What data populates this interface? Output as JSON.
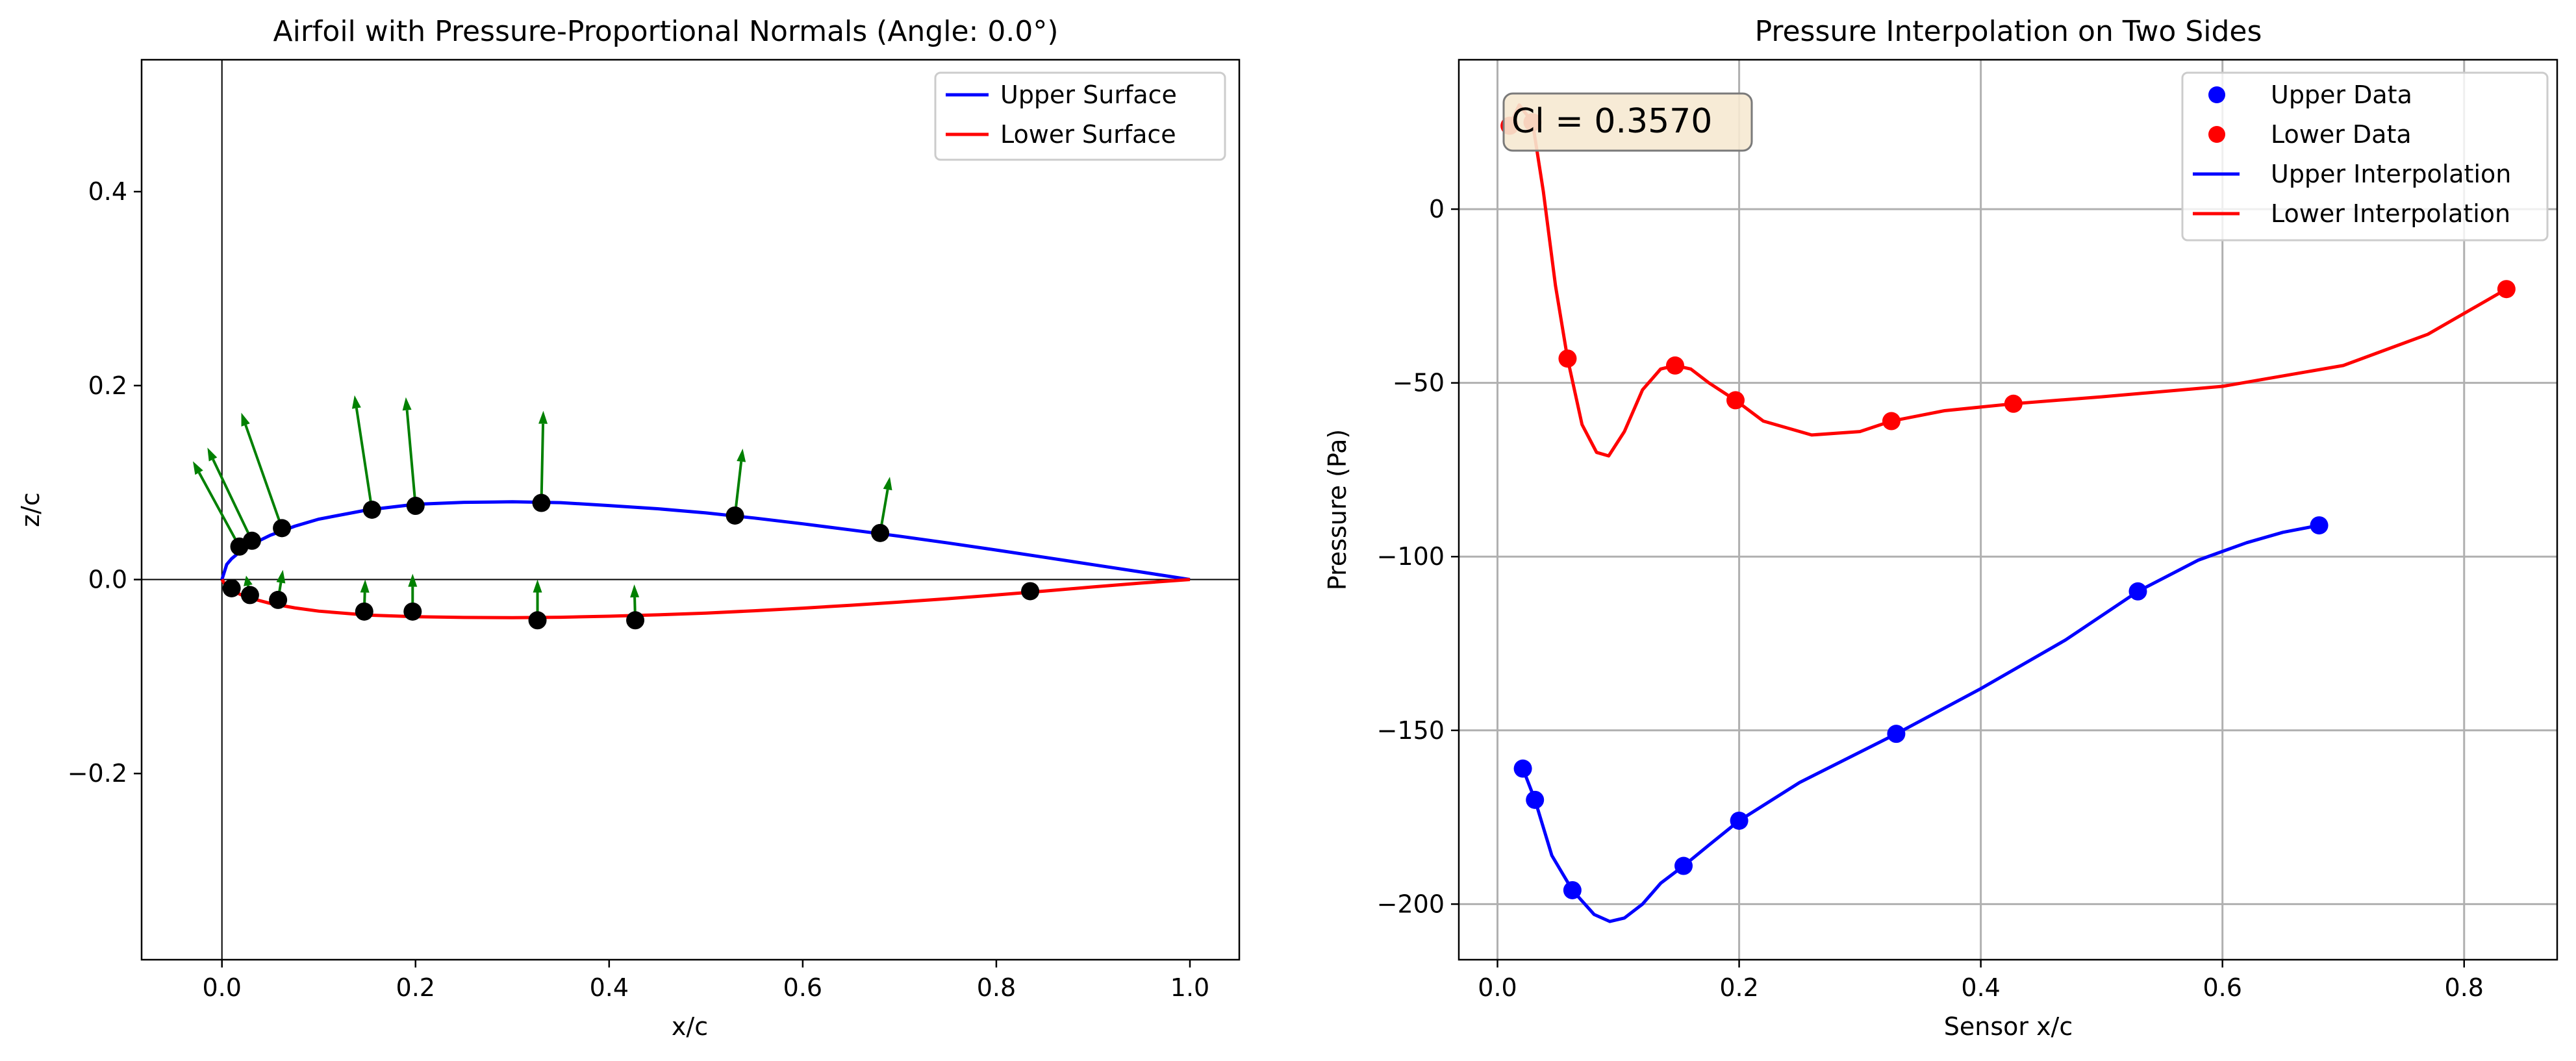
{
  "chart_data": [
    {
      "type": "line",
      "title": "Airfoil with Pressure-Proportional Normals (Angle: 0.0°)",
      "xlabel": "x/c",
      "ylabel": "z/c",
      "xlim": [
        -0.083,
        1.051
      ],
      "ylim": [
        -0.392,
        0.536
      ],
      "xticks": [
        0.0,
        0.2,
        0.4,
        0.6,
        0.8,
        1.0
      ],
      "yticks": [
        -0.2,
        0.0,
        0.2,
        0.4
      ],
      "grid": false,
      "legend_position": "top-right",
      "reference_lines": {
        "x": 0,
        "y": 0
      },
      "series": [
        {
          "name": "Upper Surface",
          "color": "#0000ff",
          "x": [
            0,
            0.005,
            0.01,
            0.02,
            0.03,
            0.05,
            0.075,
            0.1,
            0.15,
            0.2,
            0.25,
            0.3,
            0.35,
            0.4,
            0.45,
            0.5,
            0.55,
            0.6,
            0.65,
            0.7,
            0.75,
            0.8,
            0.85,
            0.9,
            0.95,
            1.0
          ],
          "y": [
            0,
            0.0156,
            0.0215,
            0.0298,
            0.0359,
            0.0457,
            0.0549,
            0.0623,
            0.0717,
            0.0776,
            0.0796,
            0.0802,
            0.0793,
            0.0763,
            0.073,
            0.0687,
            0.0634,
            0.0575,
            0.0511,
            0.0447,
            0.0377,
            0.0304,
            0.0229,
            0.0153,
            0.0077,
            0
          ]
        },
        {
          "name": "Lower Surface",
          "color": "#ff0000",
          "x": [
            0,
            0.005,
            0.01,
            0.02,
            0.03,
            0.05,
            0.075,
            0.1,
            0.15,
            0.2,
            0.25,
            0.3,
            0.35,
            0.4,
            0.45,
            0.5,
            0.55,
            0.6,
            0.65,
            0.7,
            0.75,
            0.8,
            0.85,
            0.9,
            0.95,
            1.0
          ],
          "y": [
            0,
            -0.0078,
            -0.0111,
            -0.0158,
            -0.0194,
            -0.0246,
            -0.0292,
            -0.0326,
            -0.0366,
            -0.0383,
            -0.0391,
            -0.0393,
            -0.0389,
            -0.0378,
            -0.0364,
            -0.0346,
            -0.0322,
            -0.0295,
            -0.0265,
            -0.0232,
            -0.0197,
            -0.0159,
            -0.0118,
            -0.0076,
            -0.0036,
            0
          ]
        }
      ],
      "sensors": {
        "color": "#000000",
        "upper_x": [
          0.018,
          0.031,
          0.062,
          0.155,
          0.2,
          0.33,
          0.53,
          0.68
        ],
        "upper_z": [
          0.034,
          0.04,
          0.053,
          0.072,
          0.076,
          0.079,
          0.066,
          0.048
        ],
        "lower_x": [
          0.01,
          0.029,
          0.058,
          0.147,
          0.197,
          0.326,
          0.427,
          0.835
        ],
        "lower_z": [
          -0.009,
          -0.016,
          -0.021,
          -0.033,
          -0.033,
          -0.042,
          -0.042,
          -0.012
        ]
      },
      "normals": {
        "color": "#008000",
        "upper_tip_x": [
          -0.03,
          -0.015,
          0.02,
          0.137,
          0.19,
          0.332,
          0.538,
          0.69
        ],
        "upper_tip_z": [
          0.122,
          0.136,
          0.172,
          0.19,
          0.188,
          0.174,
          0.135,
          0.106
        ],
        "lower_tip_x": [
          0.008,
          0.025,
          0.063,
          0.148,
          0.197,
          0.326,
          0.426,
          0.835
        ],
        "lower_tip_z": [
          -0.006,
          0.004,
          0.01,
          0.0,
          0.006,
          0.0,
          -0.005,
          -0.008
        ]
      }
    },
    {
      "type": "line",
      "title": "Pressure Interpolation on Two Sides",
      "xlabel": "Sensor x/c",
      "ylabel": "Pressure (Pa)",
      "xlim": [
        -0.032,
        0.877
      ],
      "ylim": [
        -216,
        43
      ],
      "xticks": [
        0.0,
        0.2,
        0.4,
        0.6,
        0.8
      ],
      "yticks": [
        0,
        -50,
        -100,
        -150,
        -200
      ],
      "grid": true,
      "legend_position": "top-right",
      "annotation": "Cl = 0.3570",
      "series": [
        {
          "name": "Upper Data",
          "style": "marker",
          "color": "#0000ff",
          "x": [
            0.021,
            0.031,
            0.062,
            0.154,
            0.2,
            0.33,
            0.53,
            0.68
          ],
          "y": [
            -161,
            -170,
            -196,
            -189,
            -176,
            -151,
            -110,
            -91
          ]
        },
        {
          "name": "Lower Data",
          "style": "marker",
          "color": "#ff0000",
          "x": [
            0.01,
            0.029,
            0.058,
            0.147,
            0.197,
            0.326,
            0.427,
            0.835
          ],
          "y": [
            24,
            25,
            -43,
            -45,
            -55,
            -61,
            -56,
            -23
          ]
        },
        {
          "name": "Upper Interpolation",
          "style": "line",
          "color": "#0000ff",
          "x": [
            0.021,
            0.031,
            0.045,
            0.062,
            0.08,
            0.093,
            0.105,
            0.12,
            0.135,
            0.154,
            0.175,
            0.2,
            0.25,
            0.33,
            0.4,
            0.47,
            0.53,
            0.58,
            0.62,
            0.65,
            0.68
          ],
          "y": [
            -161,
            -170,
            -186,
            -196,
            -203,
            -205,
            -204,
            -200,
            -194,
            -189,
            -183,
            -176,
            -165,
            -151,
            -138,
            -124,
            -110,
            -101,
            -96,
            -93,
            -91
          ]
        },
        {
          "name": "Lower Interpolation",
          "style": "line",
          "color": "#ff0000",
          "x": [
            0.01,
            0.018,
            0.029,
            0.038,
            0.048,
            0.058,
            0.07,
            0.082,
            0.092,
            0.105,
            0.12,
            0.135,
            0.147,
            0.16,
            0.175,
            0.197,
            0.22,
            0.26,
            0.3,
            0.326,
            0.37,
            0.427,
            0.5,
            0.6,
            0.7,
            0.77,
            0.835
          ],
          "y": [
            24,
            30,
            25,
            5,
            -22,
            -43,
            -62,
            -70,
            -71,
            -64,
            -52,
            -46,
            -45,
            -46,
            -50,
            -55,
            -61,
            -65,
            -64,
            -61,
            -58,
            -56,
            -54,
            -51,
            -45,
            -36,
            -23
          ]
        }
      ]
    }
  ]
}
